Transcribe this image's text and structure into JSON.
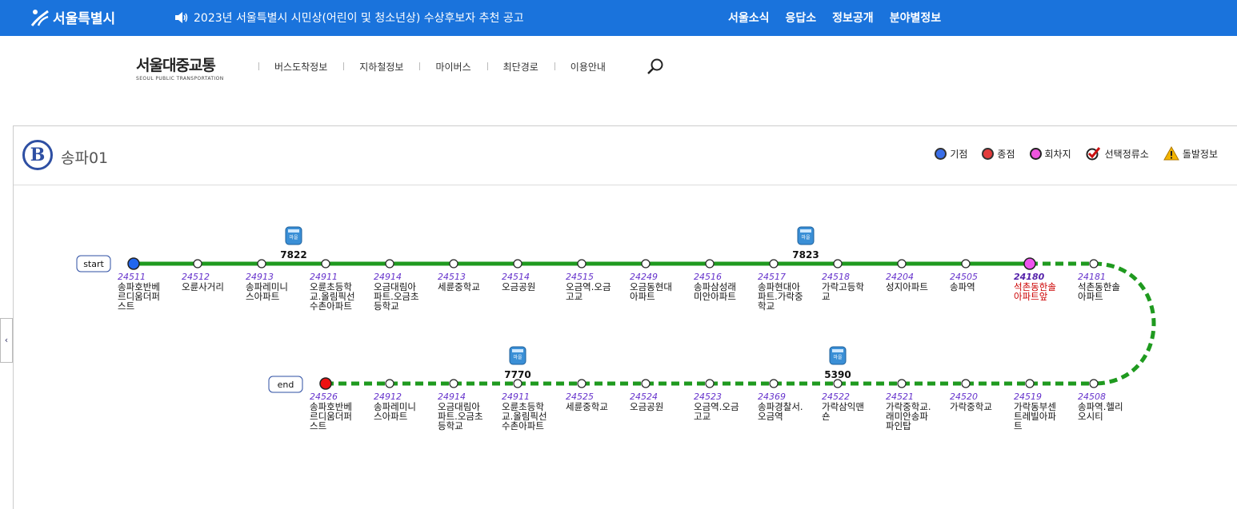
{
  "topbar": {
    "logo": "서울특별시",
    "notice": "2023년 서울특별시 시민상(어린이 및 청소년상) 수상후보자 추천 공고",
    "menu": [
      "서울소식",
      "응답소",
      "정보공개",
      "분야별정보"
    ]
  },
  "brand": {
    "ko": "서울대중교통",
    "en": "SEOUL PUBLIC TRANSPORTATION"
  },
  "nav": [
    "버스도착정보",
    "지하철정보",
    "마이버스",
    "최단경로",
    "이용안내"
  ],
  "route": {
    "badge": "B",
    "name": "송파01"
  },
  "legend": [
    {
      "label": "기점",
      "icon": "start-dot-icon",
      "color": "#3a6ee8"
    },
    {
      "label": "종점",
      "icon": "end-dot-icon",
      "color": "#e23b3b"
    },
    {
      "label": "회차지",
      "icon": "turn-dot-icon",
      "color": "#ee55dd"
    },
    {
      "label": "선택정류소",
      "icon": "check-icon",
      "color": "#cc1111"
    },
    {
      "label": "돌발정보",
      "icon": "warning-icon",
      "color": "#f2b400"
    }
  ],
  "labels": {
    "start": "start",
    "end": "end"
  },
  "colors": {
    "line": "#1f9a1f",
    "selected": "#cc0000"
  },
  "row1": [
    {
      "id": "24511",
      "name": [
        "송파호반베",
        "르디움더퍼",
        "스트"
      ],
      "type": "start"
    },
    {
      "id": "24512",
      "name": [
        "오륜사거리"
      ]
    },
    {
      "id": "24913",
      "name": [
        "송파레미니",
        "스아파트"
      ]
    },
    {
      "id": "24911",
      "name": [
        "오륜초등학",
        "교.올림픽선",
        "수촌아파트"
      ]
    },
    {
      "id": "24914",
      "name": [
        "오금대림아",
        "파트.오금초",
        "등학교"
      ]
    },
    {
      "id": "24513",
      "name": [
        "세륜중학교"
      ]
    },
    {
      "id": "24514",
      "name": [
        "오금공원"
      ]
    },
    {
      "id": "24515",
      "name": [
        "오금역.오금",
        "고교"
      ]
    },
    {
      "id": "24249",
      "name": [
        "오금동현대",
        "아파트"
      ]
    },
    {
      "id": "24516",
      "name": [
        "송파삼성래",
        "미안아파트"
      ]
    },
    {
      "id": "24517",
      "name": [
        "송파현대아",
        "파트.가락중",
        "학교"
      ]
    },
    {
      "id": "24518",
      "name": [
        "가락고등학",
        "교"
      ]
    },
    {
      "id": "24204",
      "name": [
        "성지아파트"
      ]
    },
    {
      "id": "24505",
      "name": [
        "송파역"
      ]
    },
    {
      "id": "24180",
      "name": [
        "석촌동한솔",
        "아파트앞"
      ],
      "type": "turn"
    },
    {
      "id": "24181",
      "name": [
        "석촌동한솔",
        "아파트"
      ]
    }
  ],
  "row2": [
    {
      "id": "24526",
      "name": [
        "송파호반베",
        "르디움더퍼",
        "스트"
      ],
      "type": "end"
    },
    {
      "id": "24912",
      "name": [
        "송파레미니",
        "스아파트"
      ]
    },
    {
      "id": "24914",
      "name": [
        "오금대림아",
        "파트.오금초",
        "등학교"
      ]
    },
    {
      "id": "24911",
      "name": [
        "오륜초등학",
        "교.올림픽선",
        "수촌아파트"
      ]
    },
    {
      "id": "24525",
      "name": [
        "세륜중학교"
      ]
    },
    {
      "id": "24524",
      "name": [
        "오금공원"
      ]
    },
    {
      "id": "24523",
      "name": [
        "오금역.오금",
        "고교"
      ]
    },
    {
      "id": "24369",
      "name": [
        "송파경찰서.",
        "오금역"
      ]
    },
    {
      "id": "24522",
      "name": [
        "가락삼익맨",
        "숀"
      ]
    },
    {
      "id": "24521",
      "name": [
        "가락중학교.",
        "래미안송파",
        "파인탑"
      ]
    },
    {
      "id": "24520",
      "name": [
        "가락중학교"
      ]
    },
    {
      "id": "24519",
      "name": [
        "가락동부센",
        "트레빌아파",
        "트"
      ]
    },
    {
      "id": "24508",
      "name": [
        "송파역.헬리",
        "오시티"
      ]
    }
  ],
  "buses": [
    {
      "number": "7822",
      "tag": "마을",
      "row": 1,
      "after_stop": 3
    },
    {
      "number": "7823",
      "tag": "마을",
      "row": 1,
      "after_stop": 11
    },
    {
      "number": "7770",
      "tag": "마을",
      "row": 2,
      "after_stop": 3.5
    },
    {
      "number": "5390",
      "tag": "마을",
      "row": 2,
      "after_stop": 8.5
    }
  ]
}
